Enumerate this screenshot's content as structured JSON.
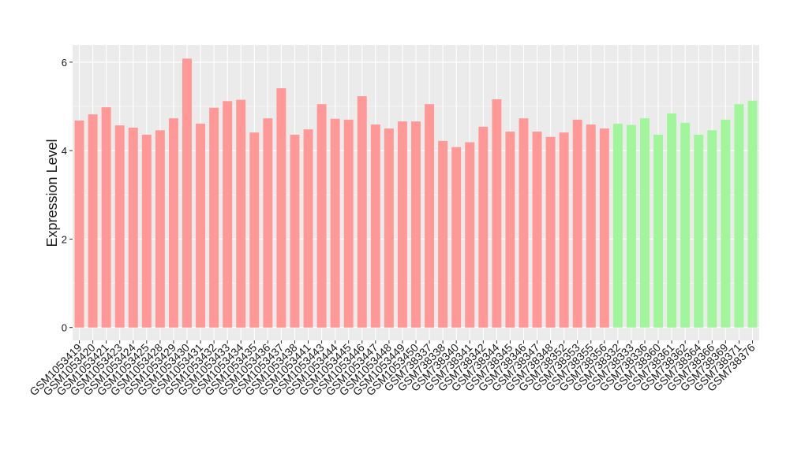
{
  "chart_data": {
    "type": "bar",
    "y_label": "Expression Level",
    "categories": [
      "GSM1053419",
      "GSM1053420",
      "GSM1053421",
      "GSM1053423",
      "GSM1053424",
      "GSM1053425",
      "GSM1053428",
      "GSM1053429",
      "GSM1053430",
      "GSM1053431",
      "GSM1053432",
      "GSM1053433",
      "GSM1053434",
      "GSM1053435",
      "GSM1053436",
      "GSM1053437",
      "GSM1053438",
      "GSM1053441",
      "GSM1053443",
      "GSM1053444",
      "GSM1053445",
      "GSM1053446",
      "GSM1053447",
      "GSM1053448",
      "GSM1053449",
      "GSM1053450",
      "GSM738337",
      "GSM738338",
      "GSM738340",
      "GSM738341",
      "GSM738342",
      "GSM738344",
      "GSM738345",
      "GSM738346",
      "GSM738347",
      "GSM738348",
      "GSM738352",
      "GSM738353",
      "GSM738355",
      "GSM738356",
      "GSM738332",
      "GSM738333",
      "GSM738336",
      "GSM738360",
      "GSM738361",
      "GSM738362",
      "GSM738364",
      "GSM738366",
      "GSM738369",
      "GSM738371",
      "GSM738376"
    ],
    "values": [
      4.68,
      4.82,
      4.98,
      4.57,
      4.52,
      4.36,
      4.46,
      4.73,
      6.08,
      4.61,
      4.97,
      5.12,
      5.15,
      4.41,
      4.73,
      5.41,
      4.36,
      4.48,
      5.05,
      4.72,
      4.7,
      5.23,
      4.59,
      4.5,
      4.66,
      4.66,
      5.05,
      4.22,
      4.08,
      4.19,
      4.54,
      5.16,
      4.43,
      4.73,
      4.43,
      4.31,
      4.41,
      4.7,
      4.59,
      4.5,
      4.61,
      4.58,
      4.73,
      4.36,
      4.84,
      4.63,
      4.36,
      4.46,
      4.7,
      5.05,
      5.13
    ],
    "colors": [
      "#ff9896",
      "#ff9896",
      "#ff9896",
      "#ff9896",
      "#ff9896",
      "#ff9896",
      "#ff9896",
      "#ff9896",
      "#ff9896",
      "#ff9896",
      "#ff9896",
      "#ff9896",
      "#ff9896",
      "#ff9896",
      "#ff9896",
      "#ff9896",
      "#ff9896",
      "#ff9896",
      "#ff9896",
      "#ff9896",
      "#ff9896",
      "#ff9896",
      "#ff9896",
      "#ff9896",
      "#ff9896",
      "#ff9896",
      "#ff9896",
      "#ff9896",
      "#ff9896",
      "#ff9896",
      "#ff9896",
      "#ff9896",
      "#ff9896",
      "#ff9896",
      "#ff9896",
      "#ff9896",
      "#ff9896",
      "#ff9896",
      "#ff9896",
      "#ff9896",
      "#a1f59b",
      "#a1f59b",
      "#a1f59b",
      "#a1f59b",
      "#a1f59b",
      "#a1f59b",
      "#a1f59b",
      "#a1f59b",
      "#a1f59b",
      "#a1f59b",
      "#a1f59b"
    ],
    "ylim": [
      -0.29,
      6.39
    ],
    "yticks": [
      0,
      2,
      4,
      6
    ],
    "grid": true
  }
}
